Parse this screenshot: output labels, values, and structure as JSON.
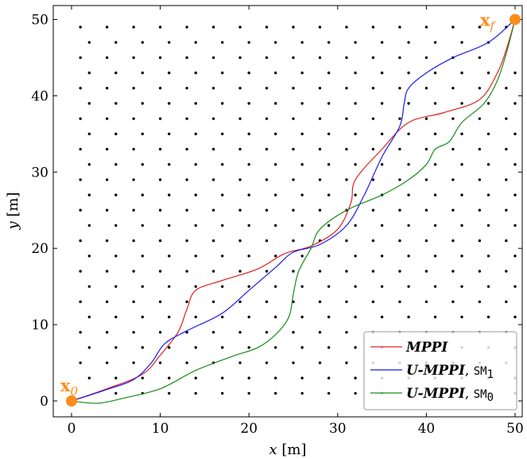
{
  "chart_data": {
    "type": "line",
    "title": "",
    "xlabel": {
      "var": "x",
      "unit": " [m]"
    },
    "ylabel": {
      "var": "y",
      "unit": " [m]"
    },
    "xlim": [
      -2,
      52
    ],
    "ylim": [
      -2,
      52
    ],
    "xticks": [
      0,
      10,
      20,
      30,
      40,
      50
    ],
    "yticks": [
      0,
      10,
      20,
      30,
      40,
      50
    ],
    "grid": false,
    "legend": "bottom-right",
    "obstacles": {
      "type": "scatter",
      "color": "#000000",
      "rows": [
        {
          "y": 49,
          "x": [
            1,
            4,
            7,
            10,
            13,
            16,
            19,
            22,
            25,
            28,
            31,
            34,
            37,
            40,
            43,
            46,
            49
          ]
        },
        {
          "y": 47,
          "x": [
            2,
            5,
            8,
            11,
            14,
            17,
            20,
            23,
            26,
            29,
            32,
            35,
            38,
            41,
            44,
            47
          ]
        },
        {
          "y": 45,
          "x": [
            1,
            4,
            7,
            10,
            13,
            16,
            19,
            22,
            25,
            28,
            31,
            34,
            37,
            40,
            43,
            46
          ]
        },
        {
          "y": 43,
          "x": [
            2,
            5,
            8,
            11,
            14,
            17,
            20,
            23,
            26,
            29,
            32,
            35,
            38,
            41,
            44,
            47,
            50
          ]
        },
        {
          "y": 41,
          "x": [
            1,
            4,
            7,
            10,
            13,
            16,
            19,
            22,
            25,
            28,
            31,
            34,
            37,
            40,
            43,
            46,
            49
          ]
        },
        {
          "y": 39,
          "x": [
            2,
            5,
            8,
            11,
            14,
            17,
            20,
            23,
            26,
            29,
            32,
            35,
            38,
            41,
            44,
            47,
            50
          ]
        },
        {
          "y": 37,
          "x": [
            1,
            4,
            7,
            10,
            13,
            16,
            19,
            22,
            25,
            28,
            31,
            34,
            37,
            40,
            43,
            46,
            49
          ]
        },
        {
          "y": 35,
          "x": [
            2,
            5,
            8,
            11,
            14,
            17,
            20,
            23,
            26,
            29,
            32,
            35,
            38,
            41,
            44,
            47,
            50
          ]
        },
        {
          "y": 33,
          "x": [
            1,
            4,
            7,
            10,
            13,
            16,
            19,
            22,
            25,
            28,
            31,
            34,
            37,
            40,
            43,
            46,
            49
          ]
        },
        {
          "y": 31,
          "x": [
            2,
            5,
            8,
            11,
            14,
            17,
            20,
            23,
            26,
            29,
            32,
            35,
            38,
            41,
            44,
            47,
            50
          ]
        },
        {
          "y": 29,
          "x": [
            1,
            4,
            7,
            10,
            13,
            16,
            19,
            22,
            25,
            28,
            31,
            34,
            37,
            40,
            43,
            46,
            49
          ]
        },
        {
          "y": 27,
          "x": [
            2,
            5,
            8,
            11,
            14,
            17,
            20,
            23,
            26,
            29,
            32,
            35,
            38,
            41,
            44,
            47,
            50
          ]
        },
        {
          "y": 25,
          "x": [
            1,
            4,
            7,
            10,
            13,
            16,
            19,
            22,
            25,
            28,
            31,
            34,
            37,
            40,
            43,
            46,
            49
          ]
        },
        {
          "y": 23,
          "x": [
            2,
            5,
            8,
            11,
            14,
            17,
            20,
            23,
            26,
            29,
            32,
            35,
            38,
            41,
            44,
            47,
            50
          ]
        },
        {
          "y": 21,
          "x": [
            1,
            4,
            7,
            10,
            13,
            16,
            19,
            22,
            25,
            28,
            31,
            34,
            37,
            40,
            43,
            46,
            49
          ]
        },
        {
          "y": 19,
          "x": [
            2,
            5,
            8,
            11,
            14,
            17,
            20,
            23,
            26,
            29,
            32,
            35,
            38,
            41,
            44,
            47,
            50
          ]
        },
        {
          "y": 17,
          "x": [
            1,
            4,
            7,
            10,
            13,
            16,
            19,
            22,
            25,
            28,
            31,
            34,
            37,
            40,
            43,
            46,
            49
          ]
        },
        {
          "y": 15,
          "x": [
            2,
            5,
            8,
            11,
            14,
            17,
            20,
            23,
            26,
            29,
            32,
            35,
            38,
            41,
            44,
            47,
            50
          ]
        },
        {
          "y": 13,
          "x": [
            1,
            4,
            7,
            10,
            13,
            16,
            19,
            22,
            25,
            28,
            31,
            34,
            37,
            40,
            43,
            46,
            49
          ]
        },
        {
          "y": 11,
          "x": [
            2,
            5,
            8,
            11,
            14,
            17,
            20,
            23,
            26,
            29,
            32,
            35,
            38,
            41,
            44,
            47,
            50
          ]
        },
        {
          "y": 9,
          "x": [
            1,
            4,
            7,
            10,
            13,
            16,
            19,
            22,
            25,
            28,
            31,
            34,
            37,
            40,
            43,
            46,
            49
          ]
        },
        {
          "y": 7,
          "x": [
            2,
            5,
            8,
            11,
            14,
            17,
            20,
            23,
            26,
            29,
            32,
            35,
            38,
            41,
            44,
            47,
            50
          ]
        },
        {
          "y": 5,
          "x": [
            1,
            4,
            7,
            10,
            13,
            16,
            19,
            22,
            25,
            28,
            31,
            34,
            37,
            40,
            43,
            46,
            49
          ]
        },
        {
          "y": 3,
          "x": [
            2,
            5,
            8,
            11,
            14,
            17,
            20,
            23,
            26,
            29,
            32,
            35,
            38,
            41,
            44,
            47,
            50
          ]
        },
        {
          "y": 1,
          "x": [
            5,
            8,
            11,
            14,
            17,
            20,
            23,
            26,
            29,
            32,
            35,
            38,
            41,
            44,
            47,
            50
          ]
        }
      ]
    },
    "endpoints": [
      {
        "name": "start",
        "label": "x",
        "sub": "0",
        "x": 0,
        "y": 0,
        "color": "#ff8c1a"
      },
      {
        "name": "goal",
        "label": "x",
        "sub": "f",
        "x": 50,
        "y": 50,
        "color": "#ff8c1a"
      }
    ],
    "series": [
      {
        "name": "MPPI",
        "suffix": "",
        "color": "#e02020",
        "points": [
          [
            0,
            0
          ],
          [
            4,
            1.6
          ],
          [
            8,
            3.5
          ],
          [
            10,
            6
          ],
          [
            12,
            9
          ],
          [
            13,
            12
          ],
          [
            14,
            14.5
          ],
          [
            17,
            15.8
          ],
          [
            21,
            17.3
          ],
          [
            24,
            19.3
          ],
          [
            27,
            20.3
          ],
          [
            30,
            22.5
          ],
          [
            31.5,
            26
          ],
          [
            32,
            29
          ],
          [
            35,
            33
          ],
          [
            38,
            36.5
          ],
          [
            42,
            37.8
          ],
          [
            46,
            39.5
          ],
          [
            48,
            43
          ],
          [
            49,
            46
          ],
          [
            50,
            50
          ]
        ]
      },
      {
        "name": "U-MPPI",
        "suffix": "SM",
        "sub": "1",
        "color": "#1a1aee",
        "points": [
          [
            0,
            0
          ],
          [
            4,
            1.5
          ],
          [
            7,
            2.8
          ],
          [
            9,
            5
          ],
          [
            10.5,
            7.5
          ],
          [
            13,
            9.2
          ],
          [
            17,
            11.5
          ],
          [
            20,
            14.5
          ],
          [
            23,
            17.5
          ],
          [
            25,
            19.5
          ],
          [
            28,
            20.5
          ],
          [
            31,
            23
          ],
          [
            33,
            27
          ],
          [
            35,
            32
          ],
          [
            37,
            36
          ],
          [
            37.5,
            39
          ],
          [
            38,
            41
          ],
          [
            40,
            43
          ],
          [
            43,
            45
          ],
          [
            47,
            47
          ],
          [
            50,
            50
          ]
        ]
      },
      {
        "name": "U-MPPI",
        "suffix": "SM",
        "sub": "0",
        "color": "#1a8a1a",
        "points": [
          [
            0,
            0
          ],
          [
            3,
            -0.3
          ],
          [
            6,
            0.4
          ],
          [
            10,
            1.6
          ],
          [
            14,
            4
          ],
          [
            18,
            5.8
          ],
          [
            21,
            7
          ],
          [
            23,
            8.7
          ],
          [
            24.5,
            11
          ],
          [
            25,
            14
          ],
          [
            25.6,
            17
          ],
          [
            27,
            20
          ],
          [
            28,
            22.5
          ],
          [
            31,
            25
          ],
          [
            35,
            27
          ],
          [
            38,
            29
          ],
          [
            40,
            31
          ],
          [
            41,
            33
          ],
          [
            42.6,
            34
          ],
          [
            44,
            36.5
          ],
          [
            46.5,
            39
          ],
          [
            48,
            42
          ],
          [
            49,
            45.5
          ],
          [
            50,
            50
          ]
        ]
      }
    ]
  }
}
